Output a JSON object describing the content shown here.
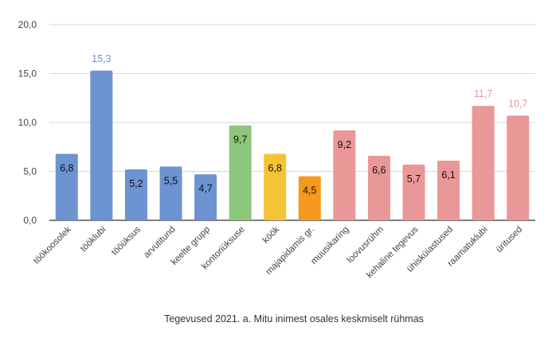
{
  "chart_data": {
    "type": "bar",
    "title": "",
    "xlabel": "Tegevused 2021. a. Mitu inimest osales keskmiselt rühmas",
    "ylabel": "",
    "ylim": [
      0,
      20
    ],
    "yticks": [
      "0,0",
      "5,0",
      "10,0",
      "15,0",
      "20,0"
    ],
    "grid": true,
    "categories": [
      "töökoosolek",
      "tööklubi",
      "tööüksus",
      "arvutitund",
      "keelte grupp",
      "kontoriüksuse",
      "köök",
      "majapidamis gr.",
      "muusikaring",
      "loovusrühm",
      "kehaline tegevus",
      "ühisküiastused",
      "raamatuklubi",
      "üritused"
    ],
    "values": [
      6.8,
      15.3,
      5.2,
      5.5,
      4.7,
      9.7,
      6.8,
      4.5,
      9.2,
      6.6,
      5.7,
      6.1,
      11.7,
      10.7
    ],
    "value_labels": [
      "6,8",
      "15,3",
      "5,2",
      "5,5",
      "4,7",
      "9,7",
      "6,8",
      "4,5",
      "9,2",
      "6,6",
      "5,7",
      "6,1",
      "11,7",
      "10,7"
    ],
    "label_outside": [
      false,
      true,
      false,
      false,
      false,
      false,
      false,
      false,
      false,
      false,
      false,
      false,
      true,
      true
    ],
    "colors": [
      "#6d93d1",
      "#6d93d1",
      "#6d93d1",
      "#6d93d1",
      "#6d93d1",
      "#8cc77c",
      "#f4c436",
      "#f59a1e",
      "#ea9798",
      "#ea9798",
      "#ea9798",
      "#ea9798",
      "#ea9798",
      "#ea9798"
    ],
    "label_colors_outside": [
      "#6d93d1",
      "#6d93d1",
      "#6d93d1",
      "#6d93d1",
      "#6d93d1",
      "#8cc77c",
      "#f4c436",
      "#f59a1e",
      "#ea9798",
      "#ea9798",
      "#ea9798",
      "#ea9798",
      "#ea9798",
      "#ea9798"
    ]
  }
}
